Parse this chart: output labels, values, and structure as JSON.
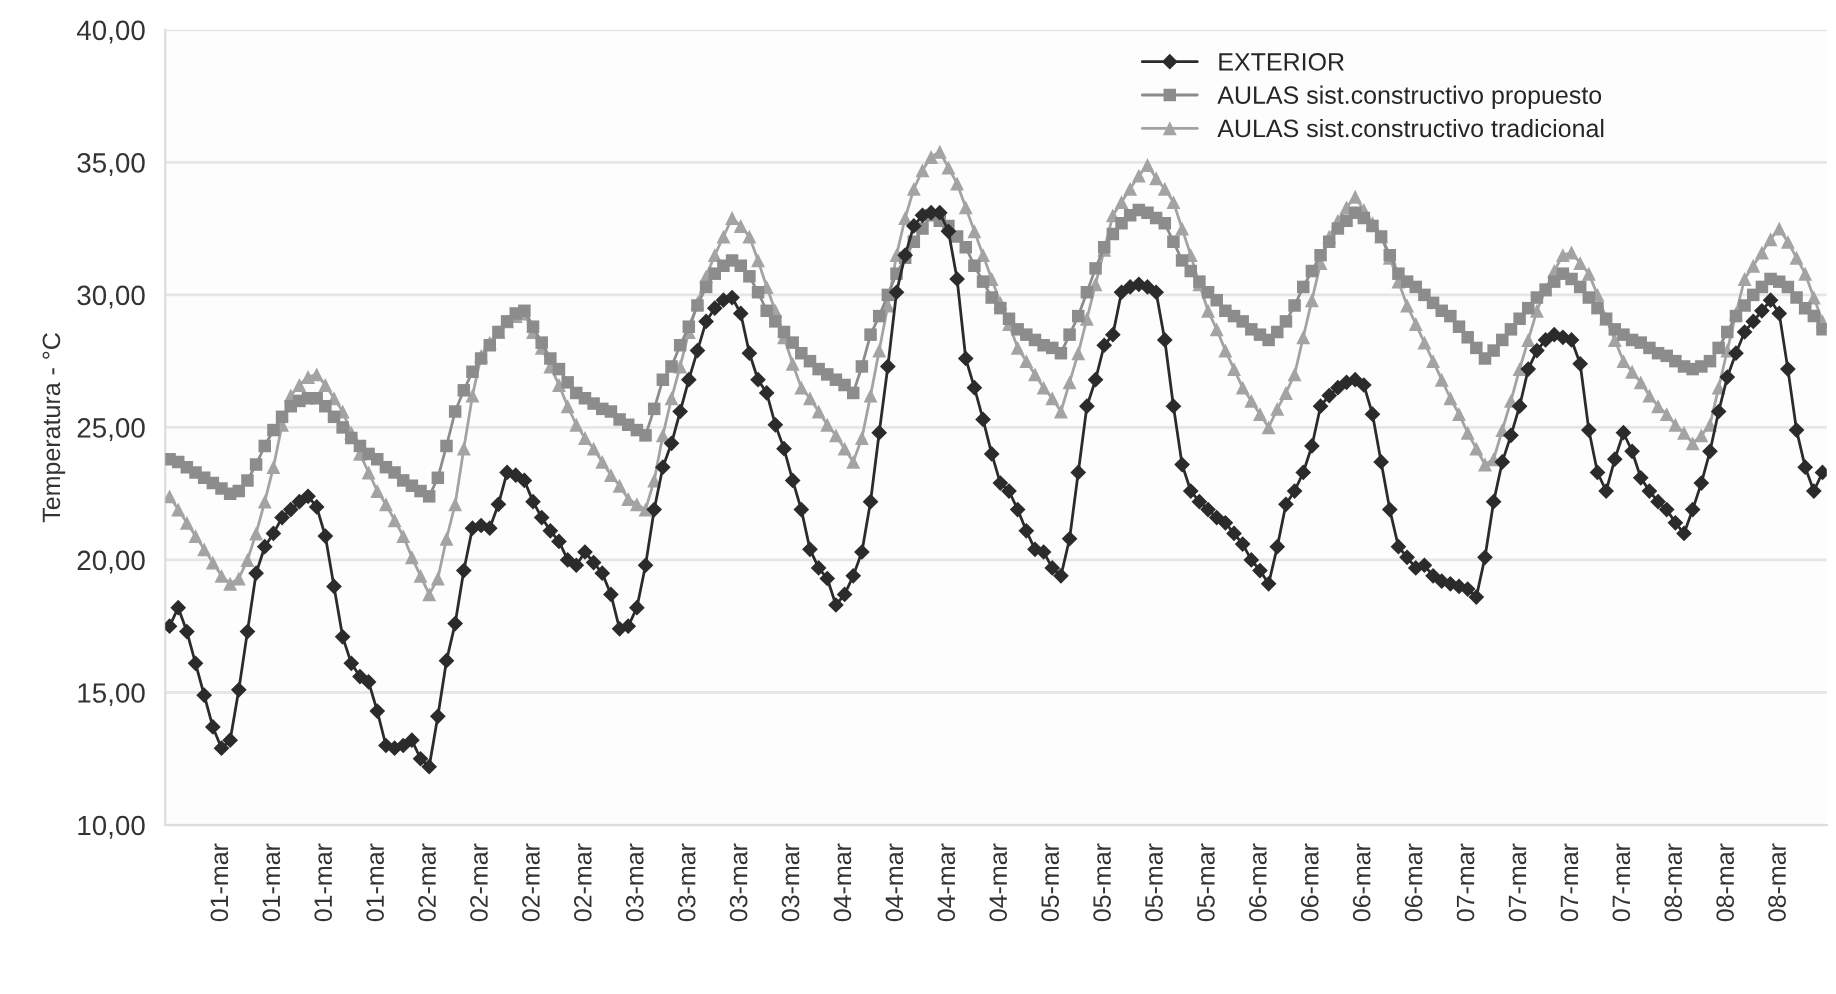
{
  "chart_data": {
    "type": "line",
    "ylabel": "Temperatura - °C",
    "categories": [
      null,
      null,
      null,
      null,
      null,
      null,
      "01-mar",
      null,
      null,
      null,
      null,
      null,
      "01-mar",
      null,
      null,
      null,
      null,
      null,
      "01-mar",
      null,
      null,
      null,
      null,
      null,
      "01-mar",
      null,
      null,
      null,
      null,
      null,
      "02-mar",
      null,
      null,
      null,
      null,
      null,
      "02-mar",
      null,
      null,
      null,
      null,
      null,
      "02-mar",
      null,
      null,
      null,
      null,
      null,
      "02-mar",
      null,
      null,
      null,
      null,
      null,
      "03-mar",
      null,
      null,
      null,
      null,
      null,
      "03-mar",
      null,
      null,
      null,
      null,
      null,
      "03-mar",
      null,
      null,
      null,
      null,
      null,
      "03-mar",
      null,
      null,
      null,
      null,
      null,
      "04-mar",
      null,
      null,
      null,
      null,
      null,
      "04-mar",
      null,
      null,
      null,
      null,
      null,
      "04-mar",
      null,
      null,
      null,
      null,
      null,
      "04-mar",
      null,
      null,
      null,
      null,
      null,
      "05-mar",
      null,
      null,
      null,
      null,
      null,
      "05-mar",
      null,
      null,
      null,
      null,
      null,
      "05-mar",
      null,
      null,
      null,
      null,
      null,
      "05-mar",
      null,
      null,
      null,
      null,
      null,
      "06-mar",
      null,
      null,
      null,
      null,
      null,
      "06-mar",
      null,
      null,
      null,
      null,
      null,
      "06-mar",
      null,
      null,
      null,
      null,
      null,
      "06-mar",
      null,
      null,
      null,
      null,
      null,
      "07-mar",
      null,
      null,
      null,
      null,
      null,
      "07-mar",
      null,
      null,
      null,
      null,
      null,
      "07-mar",
      null,
      null,
      null,
      null,
      null,
      "07-mar",
      null,
      null,
      null,
      null,
      null,
      "08-mar",
      null,
      null,
      null,
      null,
      null,
      "08-mar",
      null,
      null,
      null,
      null,
      null,
      "08-mar",
      null,
      null,
      null,
      null,
      null
    ],
    "series": [
      {
        "name": "EXTERIOR",
        "color": "#2b2b2b",
        "marker": "diamond",
        "values": [
          17.5,
          18.2,
          17.3,
          16.1,
          14.9,
          13.7,
          12.9,
          13.2,
          15.1,
          17.3,
          19.5,
          20.5,
          21.0,
          21.6,
          21.9,
          22.2,
          22.4,
          22.0,
          20.9,
          19.0,
          17.1,
          16.1,
          15.6,
          15.4,
          14.3,
          13.0,
          12.9,
          13.0,
          13.2,
          12.5,
          12.2,
          14.1,
          16.2,
          17.6,
          19.6,
          21.2,
          21.3,
          21.2,
          22.1,
          23.3,
          23.2,
          23.0,
          22.2,
          21.6,
          21.1,
          20.7,
          20.0,
          19.8,
          20.3,
          19.9,
          19.5,
          18.7,
          17.4,
          17.5,
          18.2,
          19.8,
          21.9,
          23.5,
          24.4,
          25.6,
          26.8,
          27.9,
          29.0,
          29.5,
          29.8,
          29.9,
          29.3,
          27.8,
          26.8,
          26.3,
          25.1,
          24.2,
          23.0,
          21.9,
          20.4,
          19.7,
          19.3,
          18.3,
          18.7,
          19.4,
          20.3,
          22.2,
          24.8,
          27.3,
          30.1,
          31.5,
          32.6,
          33.0,
          33.1,
          33.1,
          32.4,
          30.6,
          27.6,
          26.5,
          25.3,
          24.0,
          22.9,
          22.6,
          21.9,
          21.1,
          20.4,
          20.3,
          19.7,
          19.4,
          20.8,
          23.3,
          25.8,
          26.8,
          28.1,
          28.5,
          30.1,
          30.3,
          30.4,
          30.3,
          30.1,
          28.3,
          25.8,
          23.6,
          22.6,
          22.2,
          21.9,
          21.6,
          21.4,
          21.0,
          20.6,
          20.0,
          19.6,
          19.1,
          20.5,
          22.1,
          22.6,
          23.3,
          24.3,
          25.8,
          26.2,
          26.5,
          26.7,
          26.8,
          26.6,
          25.5,
          23.7,
          21.9,
          20.5,
          20.1,
          19.7,
          19.8,
          19.4,
          19.2,
          19.1,
          19.0,
          18.9,
          18.6,
          20.1,
          22.2,
          23.7,
          24.7,
          25.8,
          27.2,
          27.9,
          28.3,
          28.5,
          28.4,
          28.3,
          27.4,
          24.9,
          23.3,
          22.6,
          23.8,
          24.8,
          24.1,
          23.1,
          22.6,
          22.2,
          21.9,
          21.4,
          21.0,
          21.9,
          22.9,
          24.1,
          25.6,
          26.9,
          27.8,
          28.6,
          29.0,
          29.4,
          29.8,
          29.3,
          27.2,
          24.9,
          23.5,
          22.6,
          23.3
        ]
      },
      {
        "name": "AULAS sist.constructivo propuesto",
        "color": "#8c8c8c",
        "marker": "square",
        "values": [
          23.8,
          23.7,
          23.5,
          23.3,
          23.1,
          22.9,
          22.7,
          22.5,
          22.6,
          23.0,
          23.6,
          24.3,
          24.9,
          25.4,
          25.8,
          26.0,
          26.1,
          26.1,
          25.8,
          25.4,
          25.0,
          24.6,
          24.3,
          24.0,
          23.8,
          23.5,
          23.3,
          23.0,
          22.8,
          22.6,
          22.4,
          23.1,
          24.3,
          25.6,
          26.4,
          27.1,
          27.6,
          28.1,
          28.6,
          29.0,
          29.3,
          29.4,
          28.8,
          28.2,
          27.6,
          27.2,
          26.7,
          26.3,
          26.1,
          25.9,
          25.7,
          25.6,
          25.3,
          25.1,
          24.9,
          24.7,
          25.7,
          26.8,
          27.3,
          28.1,
          28.8,
          29.6,
          30.3,
          30.8,
          31.1,
          31.3,
          31.1,
          30.7,
          30.1,
          29.4,
          29.0,
          28.6,
          28.2,
          27.8,
          27.5,
          27.2,
          27.0,
          26.8,
          26.6,
          26.3,
          27.3,
          28.5,
          29.2,
          30.0,
          30.8,
          31.4,
          32.0,
          32.5,
          33.0,
          32.8,
          32.6,
          32.2,
          31.8,
          31.1,
          30.5,
          29.9,
          29.5,
          29.1,
          28.7,
          28.5,
          28.3,
          28.1,
          28.0,
          27.8,
          28.5,
          29.2,
          30.1,
          31.0,
          31.8,
          32.3,
          32.7,
          33.0,
          33.2,
          33.1,
          32.9,
          32.7,
          32.0,
          31.3,
          30.9,
          30.5,
          30.1,
          29.8,
          29.4,
          29.2,
          29.0,
          28.7,
          28.5,
          28.3,
          28.6,
          29.0,
          29.6,
          30.3,
          30.9,
          31.5,
          32.0,
          32.5,
          32.8,
          33.1,
          32.9,
          32.6,
          32.2,
          31.5,
          30.8,
          30.5,
          30.3,
          30.0,
          29.7,
          29.4,
          29.2,
          28.8,
          28.4,
          28.0,
          27.6,
          27.9,
          28.3,
          28.7,
          29.1,
          29.5,
          29.9,
          30.2,
          30.5,
          30.8,
          30.6,
          30.3,
          29.9,
          29.5,
          29.1,
          28.7,
          28.5,
          28.3,
          28.2,
          28.0,
          27.8,
          27.7,
          27.5,
          27.3,
          27.2,
          27.3,
          27.5,
          28.0,
          28.6,
          29.2,
          29.6,
          30.0,
          30.3,
          30.6,
          30.5,
          30.3,
          29.9,
          29.5,
          29.2,
          28.7
        ]
      },
      {
        "name": "AULAS sist.constructivo tradicional",
        "color": "#a3a3a3",
        "marker": "triangle",
        "values": [
          22.4,
          21.9,
          21.4,
          20.9,
          20.4,
          19.9,
          19.4,
          19.1,
          19.3,
          20.0,
          21.0,
          22.2,
          23.5,
          25.1,
          26.2,
          26.6,
          26.9,
          27.0,
          26.6,
          26.1,
          25.6,
          24.8,
          24.0,
          23.3,
          22.6,
          22.1,
          21.5,
          20.9,
          20.1,
          19.4,
          18.7,
          19.3,
          20.8,
          22.1,
          24.2,
          26.2,
          27.7,
          28.2,
          28.6,
          29.0,
          29.2,
          29.3,
          28.6,
          28.0,
          27.3,
          26.6,
          25.8,
          25.1,
          24.6,
          24.2,
          23.7,
          23.2,
          22.8,
          22.3,
          22.1,
          21.9,
          23.0,
          24.7,
          26.1,
          27.3,
          28.6,
          29.7,
          30.7,
          31.5,
          32.2,
          32.9,
          32.6,
          32.2,
          31.3,
          30.3,
          29.4,
          28.4,
          27.4,
          26.5,
          26.1,
          25.6,
          25.1,
          24.7,
          24.2,
          23.7,
          24.6,
          26.2,
          27.9,
          29.6,
          31.5,
          32.9,
          34.0,
          34.7,
          35.2,
          35.4,
          34.8,
          34.2,
          33.3,
          32.4,
          31.5,
          30.6,
          29.7,
          28.9,
          28.0,
          27.5,
          27.0,
          26.5,
          26.1,
          25.6,
          26.7,
          27.8,
          29.1,
          30.4,
          31.7,
          33.0,
          33.5,
          34.0,
          34.5,
          34.9,
          34.4,
          34.0,
          33.5,
          32.5,
          31.5,
          30.4,
          29.4,
          28.7,
          27.9,
          27.2,
          26.5,
          26.0,
          25.5,
          25.0,
          25.7,
          26.3,
          27.0,
          28.4,
          29.8,
          31.2,
          32.2,
          32.8,
          33.3,
          33.7,
          33.2,
          32.7,
          32.2,
          31.4,
          30.5,
          29.6,
          28.9,
          28.2,
          27.5,
          26.8,
          26.1,
          25.5,
          24.8,
          24.2,
          23.6,
          23.8,
          24.9,
          26.0,
          27.2,
          28.3,
          29.4,
          30.2,
          30.9,
          31.5,
          31.6,
          31.2,
          30.8,
          30.0,
          29.1,
          28.3,
          27.5,
          27.1,
          26.7,
          26.2,
          25.8,
          25.5,
          25.1,
          24.8,
          24.4,
          24.7,
          25.1,
          26.5,
          27.9,
          29.3,
          30.6,
          31.1,
          31.6,
          32.1,
          32.5,
          32.0,
          31.4,
          30.8,
          29.9,
          29.0
        ]
      }
    ],
    "ylim": [
      10,
      40
    ],
    "yticks": [
      {
        "value": 10,
        "label": "10,00"
      },
      {
        "value": 15,
        "label": "15,00"
      },
      {
        "value": 20,
        "label": "20,00"
      },
      {
        "value": 25,
        "label": "25,00"
      },
      {
        "value": 30,
        "label": "30,00"
      },
      {
        "value": 35,
        "label": "35,00"
      },
      {
        "value": 40,
        "label": "40,00"
      }
    ],
    "grid": "y",
    "legend": "top right",
    "line_style": "solid"
  }
}
